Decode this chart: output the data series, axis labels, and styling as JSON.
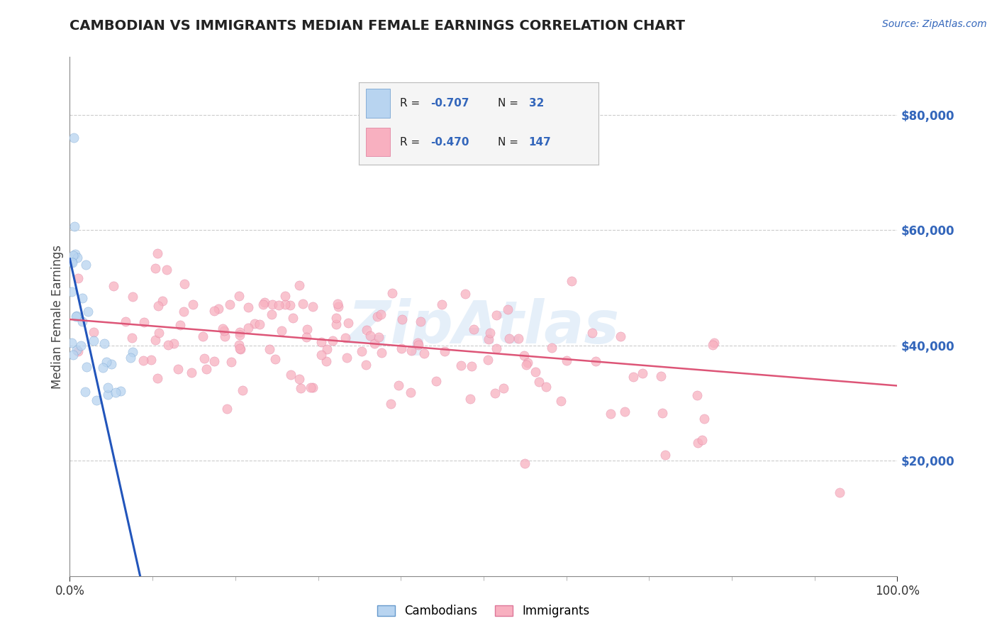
{
  "title": "CAMBODIAN VS IMMIGRANTS MEDIAN FEMALE EARNINGS CORRELATION CHART",
  "source": "Source: ZipAtlas.com",
  "ylabel": "Median Female Earnings",
  "legend_cambodian_R": "-0.707",
  "legend_cambodian_N": "32",
  "legend_immigrants_R": "-0.470",
  "legend_immigrants_N": "147",
  "label_cambodians": "Cambodians",
  "label_immigrants": "Immigrants",
  "watermark": "ZipAtlas",
  "xlim": [
    0.0,
    1.0
  ],
  "ylim": [
    0,
    90000
  ],
  "yticks": [
    20000,
    40000,
    60000,
    80000
  ],
  "ytick_labels": [
    "$20,000",
    "$40,000",
    "$60,000",
    "$80,000"
  ],
  "color_cambodian_fill": "#b8d4f0",
  "color_cambodian_edge": "#6699cc",
  "color_cambodian_line": "#2255bb",
  "color_immigrants_fill": "#f8b0c0",
  "color_immigrants_edge": "#dd7799",
  "color_immigrants_line": "#dd5577",
  "background_color": "#ffffff",
  "title_color": "#222222",
  "ylabel_color": "#444444",
  "source_color": "#3366bb",
  "ytick_color": "#3366bb",
  "legend_text_color": "#222222",
  "legend_rn_color": "#3366bb",
  "grid_color": "#cccccc",
  "watermark_color": "#aaccee",
  "camb_line_x0": 0.0,
  "camb_line_y0": 55000,
  "camb_line_x1": 0.085,
  "camb_line_y1": 0,
  "imm_line_x0": 0.0,
  "imm_line_y0": 44500,
  "imm_line_x1": 1.0,
  "imm_line_y1": 33000
}
